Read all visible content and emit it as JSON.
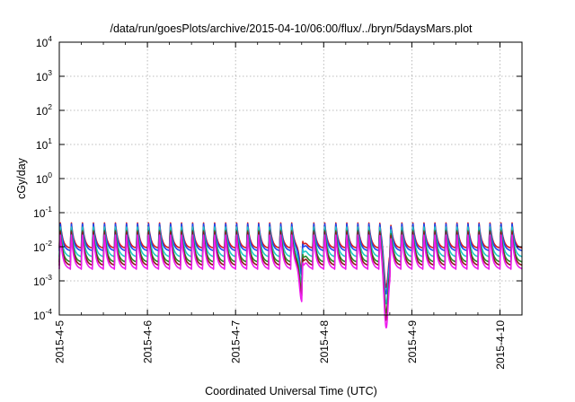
{
  "chart_data": {
    "type": "line",
    "title": "/data/run/goesPlots/archive/2015-04-10/06:00/flux/../bryn/5daysMars.plot",
    "xlabel": "Coordinated Universal Time (UTC)",
    "ylabel": "cGy/day",
    "x_type": "time",
    "x_range": [
      "2015-04-05T00:00",
      "2015-04-10T06:00"
    ],
    "x_ticks": [
      "2015-4-5",
      "2015-4-6",
      "2015-4-7",
      "2015-4-8",
      "2015-4-9",
      "2015-4-10"
    ],
    "y_scale": "log",
    "ylim": [
      0.0001,
      10000
    ],
    "y_ticks": [
      {
        "base": "10",
        "exp": "-4"
      },
      {
        "base": "10",
        "exp": "-3"
      },
      {
        "base": "10",
        "exp": "-2"
      },
      {
        "base": "10",
        "exp": "-1"
      },
      {
        "base": "10",
        "exp": "0"
      },
      {
        "base": "10",
        "exp": "1"
      },
      {
        "base": "10",
        "exp": "2"
      },
      {
        "base": "10",
        "exp": "3"
      },
      {
        "base": "10",
        "exp": "4"
      }
    ],
    "grid": true,
    "legend": "none",
    "pattern": {
      "period_hours": 3,
      "first_peak": "2015-04-05T00:00",
      "dips": [
        {
          "time": "2015-04-07T18:00",
          "min_magenta": 0.0007
        },
        {
          "time": "2015-04-08T17:00",
          "min_magenta": 0.00025
        }
      ]
    },
    "series": [
      {
        "color": "#d81b1b",
        "peak": 0.05,
        "floor": 0.009
      },
      {
        "color": "#1e46f0",
        "peak": 0.047,
        "floor": 0.0075
      },
      {
        "color": "#1ec8c8",
        "peak": 0.038,
        "floor": 0.005
      },
      {
        "color": "#2a8a2a",
        "peak": 0.03,
        "floor": 0.0035
      },
      {
        "color": "#8b1a1a",
        "peak": 0.027,
        "floor": 0.0028
      },
      {
        "color": "#ee1cee",
        "peak": 0.022,
        "floor": 0.0022
      }
    ]
  }
}
